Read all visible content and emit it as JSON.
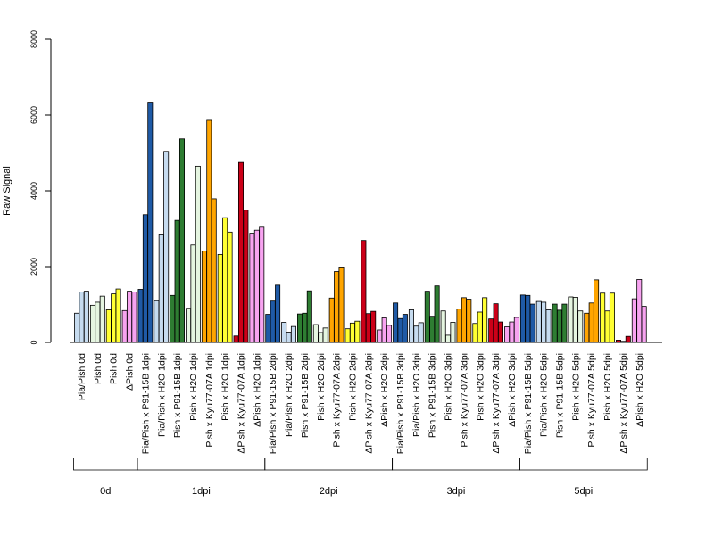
{
  "chart_data": {
    "type": "bar",
    "ylabel": "Raw Signal",
    "xlabel": "",
    "ylim": [
      0,
      8000
    ],
    "yticks": [
      0,
      2000,
      4000,
      6000,
      8000
    ],
    "grid": false,
    "legend": "none",
    "groups": [
      "0d",
      "1dpi",
      "2dpi",
      "3dpi",
      "5dpi"
    ],
    "categories": [
      {
        "label": "Pia/Pish 0d",
        "group": "0d",
        "color": "#C6DBEF",
        "values": [
          770,
          1330,
          1350
        ]
      },
      {
        "label": "Pish 0d",
        "group": "0d",
        "color": "#E5F5E0",
        "values": [
          980,
          1060,
          1220
        ]
      },
      {
        "label": "Pish 0d",
        "group": "0d",
        "color": "#FFFF33",
        "values": [
          860,
          1280,
          1410
        ]
      },
      {
        "label": "ΔPish 0d",
        "group": "0d",
        "color": "#F7A3F0",
        "values": [
          840,
          1350,
          1330
        ]
      },
      {
        "label": "Pia/Pish x P91-15B 1dpi",
        "group": "1dpi",
        "color": "#1F5AA6",
        "values": [
          1400,
          3370,
          6340
        ]
      },
      {
        "label": "Pia/Pish x H2O 1dpi",
        "group": "1dpi",
        "color": "#C6DBEF",
        "values": [
          1100,
          2860,
          5040
        ]
      },
      {
        "label": "Pish x P91-15B 1dpi",
        "group": "1dpi",
        "color": "#2E7D32",
        "values": [
          1240,
          3220,
          5370
        ]
      },
      {
        "label": "Pish x H2O 1dpi",
        "group": "1dpi",
        "color": "#E5F5E0",
        "values": [
          900,
          2570,
          4650
        ]
      },
      {
        "label": "Pish x Kyu77-07A 1dpi",
        "group": "1dpi",
        "color": "#FFA500",
        "values": [
          2410,
          5860,
          3790
        ]
      },
      {
        "label": "Pish x H2O 1dpi",
        "group": "1dpi",
        "color": "#FFFF33",
        "values": [
          2320,
          3290,
          2910
        ]
      },
      {
        "label": "ΔPish x Kyu77-07A 1dpi",
        "group": "1dpi",
        "color": "#CC0018",
        "values": [
          170,
          4750,
          3490
        ]
      },
      {
        "label": "ΔPish x H2O 1dpi",
        "group": "1dpi",
        "color": "#F7A3F0",
        "values": [
          2880,
          2960,
          3040
        ]
      },
      {
        "label": "Pia/Pish x P91-15B 2dpi",
        "group": "2dpi",
        "color": "#1F5AA6",
        "values": [
          740,
          1090,
          1510
        ]
      },
      {
        "label": "Pia/Pish x H2O 2dpi",
        "group": "2dpi",
        "color": "#C6DBEF",
        "values": [
          530,
          270,
          420
        ]
      },
      {
        "label": "Pish x P91-15B 2dpi",
        "group": "2dpi",
        "color": "#2E7D32",
        "values": [
          750,
          770,
          1360
        ]
      },
      {
        "label": "Pish x H2O 2dpi",
        "group": "2dpi",
        "color": "#E5F5E0",
        "values": [
          470,
          260,
          380
        ]
      },
      {
        "label": "Pish x Kyu77-07A 2dpi",
        "group": "2dpi",
        "color": "#FFA500",
        "values": [
          1170,
          1870,
          1990
        ]
      },
      {
        "label": "Pish x H2O 2dpi",
        "group": "2dpi",
        "color": "#FFFF33",
        "values": [
          360,
          510,
          560
        ]
      },
      {
        "label": "ΔPish x Kyu77-07A 2dpi",
        "group": "2dpi",
        "color": "#CC0018",
        "values": [
          2690,
          760,
          820
        ]
      },
      {
        "label": "ΔPish x H2O 2dpi",
        "group": "2dpi",
        "color": "#F7A3F0",
        "values": [
          330,
          650,
          450
        ]
      },
      {
        "label": "Pia/Pish x P91-15B 3dpi",
        "group": "3dpi",
        "color": "#1F5AA6",
        "values": [
          1040,
          630,
          740
        ]
      },
      {
        "label": "Pia/Pish x H2O 3dpi",
        "group": "3dpi",
        "color": "#C6DBEF",
        "values": [
          860,
          430,
          520
        ]
      },
      {
        "label": "Pish x P91-15B 3dpi",
        "group": "3dpi",
        "color": "#2E7D32",
        "values": [
          1350,
          690,
          1490
        ]
      },
      {
        "label": "Pish x H2O 3dpi",
        "group": "3dpi",
        "color": "#E5F5E0",
        "values": [
          830,
          190,
          530
        ]
      },
      {
        "label": "Pish x Kyu77-07A 3dpi",
        "group": "3dpi",
        "color": "#FFA500",
        "values": [
          880,
          1180,
          1140
        ]
      },
      {
        "label": "Pish x H2O 3dpi",
        "group": "3dpi",
        "color": "#FFFF33",
        "values": [
          500,
          800,
          1180
        ]
      },
      {
        "label": "ΔPish x Kyu77-07A 3dpi",
        "group": "3dpi",
        "color": "#CC0018",
        "values": [
          620,
          1020,
          540
        ]
      },
      {
        "label": "ΔPish x H2O 3dpi",
        "group": "3dpi",
        "color": "#F7A3F0",
        "values": [
          410,
          540,
          660
        ]
      },
      {
        "label": "Pia/Pish x P91-15B 5dpi",
        "group": "5dpi",
        "color": "#1F5AA6",
        "values": [
          1250,
          1240,
          1010
        ]
      },
      {
        "label": "Pia/Pish x H2O 5dpi",
        "group": "5dpi",
        "color": "#C6DBEF",
        "values": [
          1080,
          1060,
          860
        ]
      },
      {
        "label": "Pish x P91-15B 5dpi",
        "group": "5dpi",
        "color": "#2E7D32",
        "values": [
          1010,
          850,
          1010
        ]
      },
      {
        "label": "Pish x H2O 5dpi",
        "group": "5dpi",
        "color": "#E5F5E0",
        "values": [
          1200,
          1190,
          830
        ]
      },
      {
        "label": "Pish x Kyu77-07A 5dpi",
        "group": "5dpi",
        "color": "#FFA500",
        "values": [
          770,
          1040,
          1650
        ]
      },
      {
        "label": "Pish x H2O 5dpi",
        "group": "5dpi",
        "color": "#FFFF33",
        "values": [
          1300,
          830,
          1300
        ]
      },
      {
        "label": "ΔPish x Kyu77-07A 5dpi",
        "group": "5dpi",
        "color": "#CC0018",
        "values": [
          60,
          30,
          160
        ]
      },
      {
        "label": "ΔPish x H2O 5dpi",
        "group": "5dpi",
        "color": "#F7A3F0",
        "values": [
          1150,
          1660,
          950
        ]
      }
    ]
  }
}
